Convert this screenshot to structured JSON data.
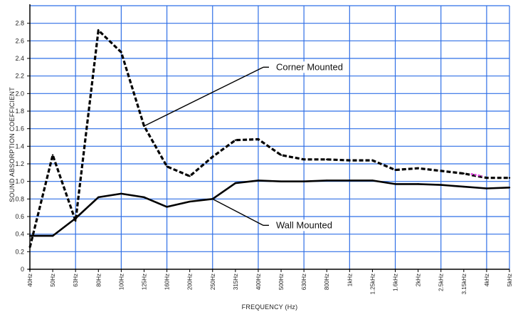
{
  "chart_data": {
    "type": "line",
    "title": "",
    "xlabel": "FREQUENCY (Hz)",
    "ylabel": "SOUND ABSORPTION COEFFICIENT",
    "ylim": [
      0,
      3.0
    ],
    "yticks": [
      "0",
      "0.2",
      "0.4",
      "0.6",
      "0.8",
      "1.0",
      "1.2",
      "1.4",
      "1.6",
      "1.8",
      "2.0",
      "2.2",
      "2.4",
      "2.6",
      "2.8"
    ],
    "categories": [
      "40Hz",
      "50Hz",
      "63Hz",
      "80Hz",
      "100Hz",
      "125Hz",
      "160Hz",
      "200Hz",
      "250Hz",
      "315Hz",
      "400Hz",
      "500Hz",
      "630Hz",
      "800Hz",
      "1kHz",
      "1.25kHz",
      "1.6kHz",
      "2kHz",
      "2.5kHz",
      "3.15kHz",
      "4kHz",
      "5kHz"
    ],
    "grid": true,
    "series": [
      {
        "name": "Corner Mounted",
        "style": "dashed",
        "color": "#000000",
        "values": [
          0.25,
          1.3,
          0.55,
          2.72,
          2.47,
          1.63,
          1.17,
          1.06,
          1.28,
          1.47,
          1.48,
          1.3,
          1.25,
          1.25,
          1.24,
          1.24,
          1.13,
          1.15,
          1.12,
          1.09,
          1.04,
          1.04
        ]
      },
      {
        "name": "Wall Mounted",
        "style": "solid",
        "color": "#000000",
        "values": [
          0.38,
          0.38,
          0.58,
          0.82,
          0.86,
          0.82,
          0.71,
          0.77,
          0.8,
          0.98,
          1.01,
          1.0,
          1.0,
          1.01,
          1.01,
          1.01,
          0.97,
          0.97,
          0.96,
          0.94,
          0.92,
          0.93
        ]
      }
    ],
    "annotations": [
      {
        "text": "Corner Mounted",
        "series": 0,
        "point_index": 5
      },
      {
        "text": "Wall Mounted",
        "series": 1,
        "point_index": 8
      }
    ]
  },
  "colors": {
    "grid": "#2f6fe6",
    "axis": "#000000",
    "highlight": "#e040e0"
  }
}
